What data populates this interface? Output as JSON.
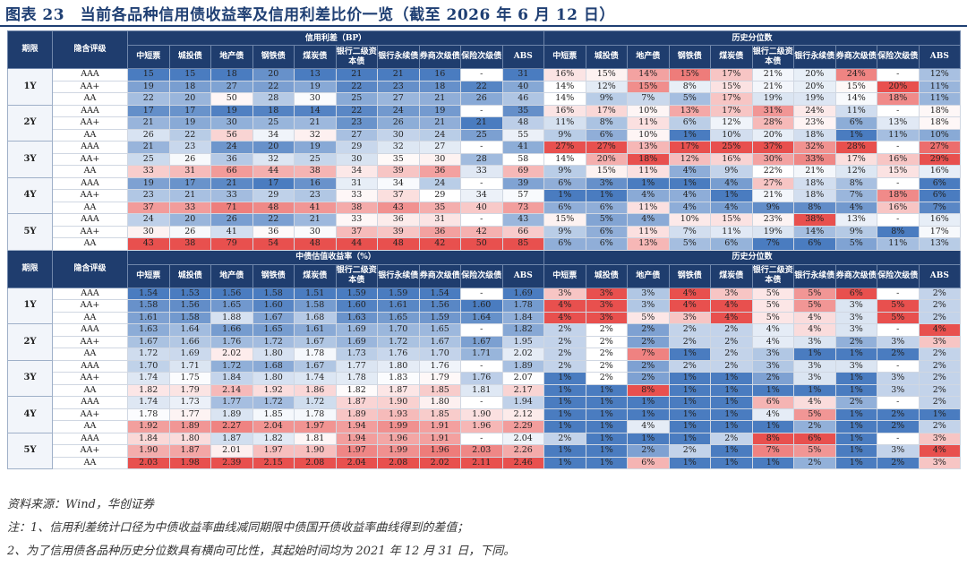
{
  "title": "图表 23　当前各品种信用债收益率及信用利差比价一览（截至 2026 年 6 月 12 日）",
  "headers": {
    "period": "期限",
    "rating": "隐含评级",
    "spread_section": "信用利差（BP）",
    "yield_section": "中债估值收益率（%）",
    "percentile_section": "历史分位数",
    "columns": [
      "中短票",
      "城投债",
      "地产债",
      "钢铁债",
      "煤炭债",
      "银行二级资本债",
      "银行永续债",
      "券商次级债",
      "保险次级债",
      "ABS"
    ]
  },
  "colors": {
    "header_bg": "#1f3d6e",
    "low_color": "#4a7cc0",
    "high_color": "#e8504e",
    "neutral": "#ffffff"
  },
  "spread_block": [
    {
      "term": "1Y",
      "rows": [
        {
          "rating": "AAA",
          "values": [
            "15",
            "15",
            "18",
            "20",
            "13",
            "21",
            "21",
            "16",
            "-",
            "31"
          ],
          "pct": [
            "16%",
            "15%",
            "14%",
            "15%",
            "17%",
            "21%",
            "20%",
            "24%",
            "-",
            "12%"
          ]
        },
        {
          "rating": "AA+",
          "values": [
            "19",
            "18",
            "27",
            "22",
            "19",
            "22",
            "23",
            "18",
            "22",
            "40"
          ],
          "pct": [
            "14%",
            "12%",
            "15%",
            "8%",
            "15%",
            "21%",
            "20%",
            "15%",
            "20%",
            "11%"
          ]
        },
        {
          "rating": "AA",
          "values": [
            "22",
            "20",
            "50",
            "28",
            "30",
            "25",
            "27",
            "21",
            "26",
            "46"
          ],
          "pct": [
            "14%",
            "9%",
            "7%",
            "5%",
            "17%",
            "19%",
            "19%",
            "14%",
            "18%",
            "11%"
          ]
        }
      ]
    },
    {
      "term": "2Y",
      "rows": [
        {
          "rating": "AAA",
          "values": [
            "17",
            "17",
            "19",
            "18",
            "14",
            "22",
            "24",
            "19",
            "-",
            "35"
          ],
          "pct": [
            "16%",
            "17%",
            "10%",
            "13%",
            "17%",
            "31%",
            "24%",
            "11%",
            "-",
            "18%"
          ]
        },
        {
          "rating": "AA+",
          "values": [
            "21",
            "19",
            "30",
            "25",
            "21",
            "23",
            "26",
            "21",
            "21",
            "48"
          ],
          "pct": [
            "11%",
            "8%",
            "11%",
            "6%",
            "12%",
            "28%",
            "23%",
            "6%",
            "13%",
            "18%"
          ]
        },
        {
          "rating": "AA",
          "values": [
            "26",
            "22",
            "56",
            "34",
            "32",
            "27",
            "30",
            "24",
            "25",
            "55"
          ],
          "pct": [
            "9%",
            "6%",
            "10%",
            "1%",
            "10%",
            "20%",
            "18%",
            "1%",
            "11%",
            "10%"
          ]
        }
      ]
    },
    {
      "term": "3Y",
      "rows": [
        {
          "rating": "AAA",
          "values": [
            "21",
            "23",
            "24",
            "20",
            "19",
            "29",
            "32",
            "27",
            "-",
            "41"
          ],
          "pct": [
            "27%",
            "27%",
            "13%",
            "17%",
            "25%",
            "37%",
            "32%",
            "28%",
            "-",
            "27%"
          ]
        },
        {
          "rating": "AA+",
          "values": [
            "25",
            "26",
            "36",
            "32",
            "25",
            "30",
            "35",
            "30",
            "28",
            "58"
          ],
          "pct": [
            "14%",
            "20%",
            "18%",
            "12%",
            "16%",
            "30%",
            "33%",
            "17%",
            "16%",
            "29%"
          ]
        },
        {
          "rating": "AA",
          "values": [
            "33",
            "31",
            "66",
            "44",
            "38",
            "34",
            "39",
            "36",
            "33",
            "69"
          ],
          "pct": [
            "9%",
            "15%",
            "11%",
            "4%",
            "9%",
            "22%",
            "21%",
            "12%",
            "15%",
            "16%"
          ]
        }
      ]
    },
    {
      "term": "4Y",
      "rows": [
        {
          "rating": "AAA",
          "values": [
            "19",
            "17",
            "21",
            "17",
            "16",
            "31",
            "34",
            "24",
            "-",
            "39"
          ],
          "pct": [
            "6%",
            "3%",
            "1%",
            "1%",
            "4%",
            "27%",
            "18%",
            "8%",
            "-",
            "6%"
          ]
        },
        {
          "rating": "AA+",
          "values": [
            "23",
            "21",
            "33",
            "29",
            "23",
            "33",
            "37",
            "29",
            "34",
            "57"
          ],
          "pct": [
            "1%",
            "1%",
            "4%",
            "4%",
            "1%",
            "21%",
            "18%",
            "7%",
            "18%",
            "6%"
          ]
        },
        {
          "rating": "AA",
          "values": [
            "37",
            "33",
            "71",
            "48",
            "41",
            "38",
            "43",
            "35",
            "40",
            "73"
          ],
          "pct": [
            "6%",
            "6%",
            "11%",
            "4%",
            "4%",
            "9%",
            "8%",
            "4%",
            "16%",
            "7%"
          ]
        }
      ]
    },
    {
      "term": "5Y",
      "rows": [
        {
          "rating": "AAA",
          "values": [
            "24",
            "20",
            "26",
            "22",
            "21",
            "33",
            "36",
            "31",
            "-",
            "43"
          ],
          "pct": [
            "15%",
            "5%",
            "4%",
            "10%",
            "15%",
            "23%",
            "38%",
            "13%",
            "-",
            "16%"
          ]
        },
        {
          "rating": "AA+",
          "values": [
            "30",
            "26",
            "41",
            "36",
            "30",
            "37",
            "39",
            "36",
            "42",
            "66"
          ],
          "pct": [
            "9%",
            "6%",
            "11%",
            "7%",
            "11%",
            "19%",
            "14%",
            "9%",
            "8%",
            "17%"
          ]
        },
        {
          "rating": "AA",
          "values": [
            "43",
            "38",
            "79",
            "54",
            "48",
            "44",
            "48",
            "42",
            "50",
            "85"
          ],
          "pct": [
            "6%",
            "6%",
            "13%",
            "5%",
            "6%",
            "7%",
            "6%",
            "5%",
            "11%",
            "13%"
          ]
        }
      ]
    }
  ],
  "yield_block": [
    {
      "term": "1Y",
      "rows": [
        {
          "rating": "AAA",
          "values": [
            "1.54",
            "1.53",
            "1.56",
            "1.58",
            "1.51",
            "1.59",
            "1.59",
            "1.54",
            "-",
            "1.69"
          ],
          "pct": [
            "3%",
            "3%",
            "3%",
            "4%",
            "3%",
            "5%",
            "5%",
            "6%",
            "-",
            "2%"
          ]
        },
        {
          "rating": "AA+",
          "values": [
            "1.58",
            "1.56",
            "1.65",
            "1.60",
            "1.58",
            "1.60",
            "1.61",
            "1.56",
            "1.60",
            "1.78"
          ],
          "pct": [
            "4%",
            "3%",
            "3%",
            "4%",
            "4%",
            "5%",
            "5%",
            "3%",
            "5%",
            "2%"
          ]
        },
        {
          "rating": "AA",
          "values": [
            "1.61",
            "1.58",
            "1.88",
            "1.67",
            "1.68",
            "1.63",
            "1.65",
            "1.59",
            "1.64",
            "1.84"
          ],
          "pct": [
            "4%",
            "3%",
            "5%",
            "3%",
            "4%",
            "5%",
            "4%",
            "3%",
            "5%",
            "2%"
          ]
        }
      ]
    },
    {
      "term": "2Y",
      "rows": [
        {
          "rating": "AAA",
          "values": [
            "1.63",
            "1.64",
            "1.66",
            "1.65",
            "1.61",
            "1.69",
            "1.70",
            "1.65",
            "-",
            "1.82"
          ],
          "pct": [
            "2%",
            "2%",
            "2%",
            "2%",
            "2%",
            "4%",
            "4%",
            "3%",
            "-",
            "4%"
          ]
        },
        {
          "rating": "AA+",
          "values": [
            "1.67",
            "1.66",
            "1.76",
            "1.72",
            "1.67",
            "1.69",
            "1.72",
            "1.67",
            "1.67",
            "1.95"
          ],
          "pct": [
            "2%",
            "2%",
            "2%",
            "2%",
            "2%",
            "4%",
            "3%",
            "2%",
            "3%",
            "3%"
          ]
        },
        {
          "rating": "AA",
          "values": [
            "1.72",
            "1.69",
            "2.02",
            "1.80",
            "1.78",
            "1.73",
            "1.76",
            "1.70",
            "1.71",
            "2.02"
          ],
          "pct": [
            "2%",
            "2%",
            "7%",
            "1%",
            "2%",
            "3%",
            "1%",
            "1%",
            "2%",
            "2%"
          ]
        }
      ]
    },
    {
      "term": "3Y",
      "rows": [
        {
          "rating": "AAA",
          "values": [
            "1.70",
            "1.71",
            "1.72",
            "1.68",
            "1.67",
            "1.77",
            "1.80",
            "1.76",
            "-",
            "1.89"
          ],
          "pct": [
            "2%",
            "2%",
            "2%",
            "2%",
            "2%",
            "3%",
            "3%",
            "3%",
            "-",
            "2%"
          ]
        },
        {
          "rating": "AA+",
          "values": [
            "1.74",
            "1.75",
            "1.84",
            "1.80",
            "1.74",
            "1.78",
            "1.83",
            "1.79",
            "1.76",
            "2.07"
          ],
          "pct": [
            "1%",
            "2%",
            "2%",
            "1%",
            "1%",
            "2%",
            "3%",
            "1%",
            "3%",
            "2%"
          ]
        },
        {
          "rating": "AA",
          "values": [
            "1.82",
            "1.79",
            "2.14",
            "1.92",
            "1.86",
            "1.82",
            "1.87",
            "1.85",
            "1.81",
            "2.17"
          ],
          "pct": [
            "1%",
            "1%",
            "8%",
            "1%",
            "1%",
            "1%",
            "1%",
            "1%",
            "3%",
            "2%"
          ]
        }
      ]
    },
    {
      "term": "4Y",
      "rows": [
        {
          "rating": "AAA",
          "values": [
            "1.74",
            "1.73",
            "1.77",
            "1.72",
            "1.72",
            "1.87",
            "1.90",
            "1.80",
            "-",
            "1.94"
          ],
          "pct": [
            "1%",
            "1%",
            "1%",
            "1%",
            "1%",
            "6%",
            "4%",
            "2%",
            "-",
            "2%"
          ]
        },
        {
          "rating": "AA+",
          "values": [
            "1.78",
            "1.77",
            "1.89",
            "1.85",
            "1.78",
            "1.89",
            "1.93",
            "1.85",
            "1.90",
            "2.12"
          ],
          "pct": [
            "1%",
            "1%",
            "1%",
            "1%",
            "1%",
            "4%",
            "5%",
            "1%",
            "2%",
            "1%"
          ]
        },
        {
          "rating": "AA",
          "values": [
            "1.92",
            "1.89",
            "2.27",
            "2.04",
            "1.97",
            "1.94",
            "1.99",
            "1.91",
            "1.96",
            "2.29"
          ],
          "pct": [
            "1%",
            "1%",
            "4%",
            "1%",
            "1%",
            "1%",
            "2%",
            "1%",
            "2%",
            "2%"
          ]
        }
      ]
    },
    {
      "term": "5Y",
      "rows": [
        {
          "rating": "AAA",
          "values": [
            "1.84",
            "1.80",
            "1.87",
            "1.82",
            "1.81",
            "1.94",
            "1.96",
            "1.91",
            "-",
            "2.04"
          ],
          "pct": [
            "2%",
            "1%",
            "1%",
            "1%",
            "2%",
            "8%",
            "6%",
            "1%",
            "-",
            "3%"
          ]
        },
        {
          "rating": "AA+",
          "values": [
            "1.90",
            "1.87",
            "2.01",
            "1.97",
            "1.90",
            "1.97",
            "1.99",
            "1.96",
            "2.03",
            "2.26"
          ],
          "pct": [
            "1%",
            "1%",
            "2%",
            "2%",
            "1%",
            "7%",
            "5%",
            "1%",
            "3%",
            "4%"
          ]
        },
        {
          "rating": "AA",
          "values": [
            "2.03",
            "1.98",
            "2.39",
            "2.15",
            "2.08",
            "2.04",
            "2.08",
            "2.02",
            "2.11",
            "2.46"
          ],
          "pct": [
            "1%",
            "1%",
            "6%",
            "1%",
            "1%",
            "1%",
            "2%",
            "1%",
            "2%",
            "3%"
          ]
        }
      ]
    }
  ],
  "notes": {
    "source": "资料来源：Wind，华创证券",
    "note1": "注：1、信用利差统计口径为中债收益率曲线减同期限中债国开债收益率曲线得到的差值；",
    "note2": "2、为了信用债各品种历史分位数具有横向可比性，其起始时间均为 2021 年 12 月 31 日，下同。"
  }
}
